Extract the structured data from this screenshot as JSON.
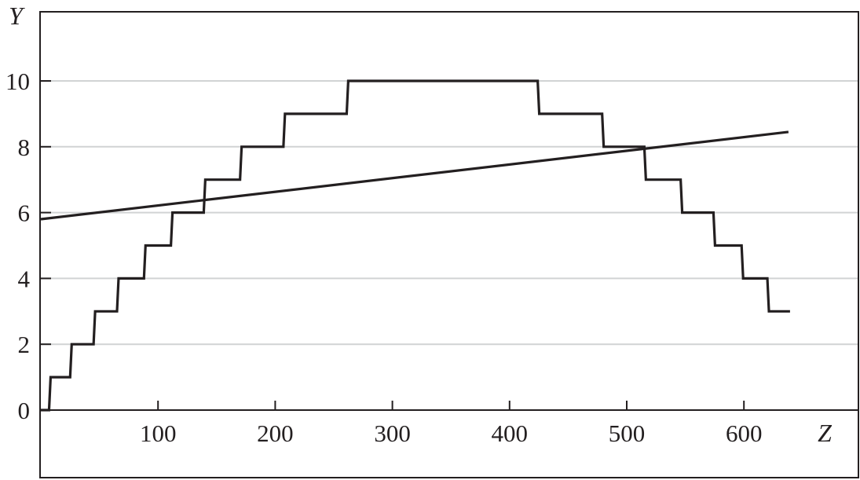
{
  "chart_data": {
    "type": "line",
    "title": "",
    "xlabel": "Z",
    "ylabel": "Y",
    "xlim": [
      0,
      700
    ],
    "ylim": [
      -2,
      11
    ],
    "grid": "horizontal",
    "xticks": [
      "100",
      "200",
      "300",
      "400",
      "500",
      "600"
    ],
    "yticks": [
      "0",
      "2",
      "4",
      "6",
      "8",
      "10"
    ],
    "series": [
      {
        "style": "step",
        "color": "#231f20",
        "x": [
          0,
          7,
          25,
          45,
          65,
          88,
          111,
          139,
          170,
          207,
          261,
          424,
          479,
          515,
          546,
          574,
          598,
          620,
          638
        ],
        "y": [
          0,
          1,
          2,
          3,
          4,
          5,
          6,
          7,
          8,
          9,
          10,
          9,
          8,
          7,
          6,
          5,
          4,
          3,
          3
        ]
      },
      {
        "style": "line",
        "color": "#231f20",
        "x": [
          0,
          638
        ],
        "y": [
          5.8,
          8.45
        ]
      }
    ]
  }
}
